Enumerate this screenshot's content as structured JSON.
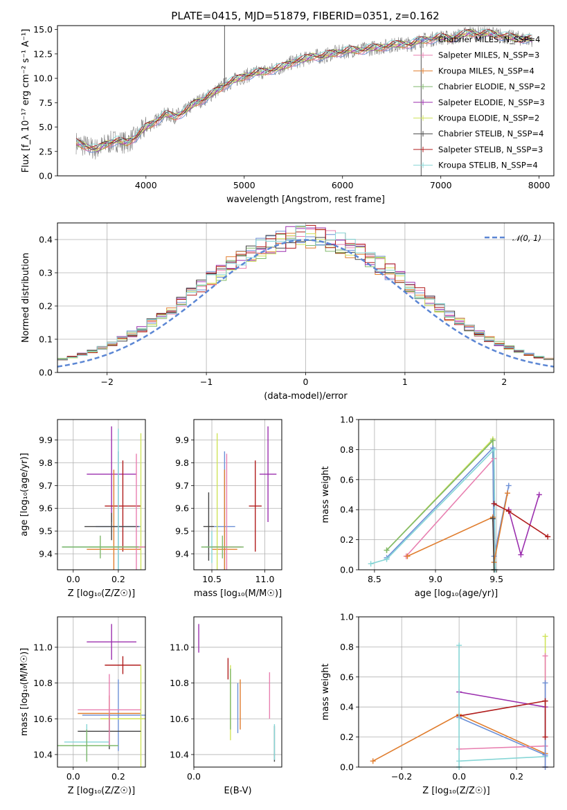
{
  "figure": {
    "title": "PLATE=0415, MJD=51879, FIBERID=0351, z=0.162"
  },
  "colors": {
    "chabrier_miles": "#6b8fd6",
    "salpeter_miles": "#e87fb0",
    "kroupa_miles": "#e07d2e",
    "chabrier_elodie": "#7fb86b",
    "salpeter_elodie": "#9b2fae",
    "kroupa_elodie": "#cfe35a",
    "chabrier_stelib": "#444444",
    "salpeter_stelib": "#b01c1c",
    "kroupa_stelib": "#86d6d6",
    "spectrum": "#808080",
    "normal_curve": "#5b86d4",
    "grid": "#b0b0b0"
  },
  "chart_data": [
    {
      "id": "spectrum",
      "type": "line",
      "xlabel": "wavelength [Angstrom, rest frame]",
      "ylabel": "Flux [f_λ 10⁻¹⁷ erg cm⁻² s⁻¹ A⁻¹]",
      "xlim": [
        3100,
        8150
      ],
      "ylim": [
        0,
        15.4
      ],
      "xticks": [
        "4000",
        "5000",
        "6000",
        "7000",
        "8000"
      ],
      "yticks": [
        "0.0",
        "2.5",
        "5.0",
        "7.5",
        "10.0",
        "12.5",
        "15.0"
      ],
      "grid": false,
      "legend_position": "upper-right",
      "continuum": [
        [
          3290,
          3.4
        ],
        [
          3400,
          3.0
        ],
        [
          3500,
          2.7
        ],
        [
          3600,
          3.3
        ],
        [
          3700,
          3.6
        ],
        [
          3800,
          3.4
        ],
        [
          3900,
          4.0
        ],
        [
          4000,
          5.0
        ],
        [
          4100,
          5.6
        ],
        [
          4200,
          6.3
        ],
        [
          4300,
          6.1
        ],
        [
          4400,
          6.6
        ],
        [
          4500,
          7.5
        ],
        [
          4600,
          7.9
        ],
        [
          4700,
          8.6
        ],
        [
          4800,
          9.3
        ],
        [
          4900,
          9.8
        ],
        [
          5000,
          10.2
        ],
        [
          5100,
          10.5
        ],
        [
          5200,
          10.7
        ],
        [
          5300,
          10.9
        ],
        [
          5400,
          11.2
        ],
        [
          5500,
          11.7
        ],
        [
          5600,
          11.9
        ],
        [
          5700,
          12.3
        ],
        [
          5800,
          12.2
        ],
        [
          5900,
          12.6
        ],
        [
          6000,
          12.7
        ],
        [
          6100,
          12.9
        ],
        [
          6200,
          12.9
        ],
        [
          6300,
          13.1
        ],
        [
          6400,
          13.2
        ],
        [
          6500,
          13.4
        ],
        [
          6600,
          13.5
        ],
        [
          6700,
          13.5
        ],
        [
          6800,
          13.9
        ],
        [
          6900,
          14.0
        ],
        [
          7000,
          14.2
        ],
        [
          7100,
          14.1
        ],
        [
          7200,
          14.4
        ],
        [
          7300,
          14.7
        ],
        [
          7400,
          14.5
        ],
        [
          7500,
          14.6
        ],
        [
          7600,
          14.4
        ],
        [
          7700,
          14.2
        ],
        [
          7800,
          14.1
        ],
        [
          7930,
          14.0
        ]
      ],
      "spikes": [
        [
          4800,
          15.4
        ],
        [
          6800,
          0.0
        ],
        [
          7380,
          14.3
        ]
      ],
      "legend": [
        "Chabrier MILES, N_SSP=4",
        "Salpeter MILES, N_SSP=3",
        "Kroupa MILES, N_SSP=4",
        "Chabrier ELODIE, N_SSP=2",
        "Salpeter ELODIE, N_SSP=3",
        "Kroupa ELODIE, N_SSP=2",
        "Chabrier STELIB, N_SSP=4",
        "Salpeter STELIB, N_SSP=3",
        "Kroupa STELIB, N_SSP=4"
      ]
    },
    {
      "id": "residuals",
      "type": "line",
      "xlabel": "(data-model)/error",
      "ylabel": "Normed distribution",
      "xlim": [
        -2.5,
        2.5
      ],
      "ylim": [
        0,
        0.45
      ],
      "xticks": [
        "−2",
        "−1",
        "0",
        "1",
        "2"
      ],
      "yticks": [
        "0.0",
        "0.1",
        "0.2",
        "0.3",
        "0.4"
      ],
      "grid": true,
      "legend": [
        "𝒩(0, 1)"
      ],
      "legend_position": "upper-right",
      "normal_curve": {
        "mu": 0,
        "sigma": 1
      }
    },
    {
      "id": "age-z",
      "type": "scatter",
      "xlabel": "Z [log₁₀(Z/Z☉)]",
      "ylabel": "age  [log₁₀(age/yr)]",
      "xlim": [
        -0.07,
        0.32
      ],
      "ylim": [
        9.33,
        9.99
      ],
      "xticks": [
        "0.0",
        "0.2"
      ],
      "yticks": [
        "9.4",
        "9.5",
        "9.6",
        "9.7",
        "9.8",
        "9.9"
      ],
      "grid": true,
      "points": [
        {
          "x": 0.17,
          "y": 9.75,
          "xerr": 0.11,
          "yerr": 0.21,
          "color": "salpeter_elodie"
        },
        {
          "x": 0.22,
          "y": 9.61,
          "xerr": 0.08,
          "yerr": 0.2,
          "color": "salpeter_stelib"
        },
        {
          "x": 0.2,
          "y": 9.52,
          "xerr": 0.1,
          "yerr": 0.33,
          "color": "chabrier_miles"
        },
        {
          "x": 0.18,
          "y": 9.42,
          "xerr": 0.12,
          "yerr": 0.35,
          "color": "kroupa_miles"
        },
        {
          "x": 0.3,
          "y": 9.43,
          "xerr": 0.23,
          "yerr": 0.5,
          "color": "kroupa_elodie"
        },
        {
          "x": 0.17,
          "y": 9.52,
          "xerr": 0.12,
          "yerr": 0.06,
          "color": "chabrier_stelib"
        },
        {
          "x": 0.2,
          "y": 9.43,
          "xerr": 0.25,
          "yerr": 0.52,
          "color": "kroupa_stelib"
        },
        {
          "x": 0.28,
          "y": 9.43,
          "xerr": 0.1,
          "yerr": 0.41,
          "color": "salpeter_miles"
        },
        {
          "x": 0.12,
          "y": 9.43,
          "xerr": 0.17,
          "yerr": 0.05,
          "color": "chabrier_elodie"
        }
      ]
    },
    {
      "id": "age-mass",
      "type": "scatter",
      "xlabel": "mass [log₁₀(M/M☉)]",
      "ylabel": "",
      "xlim": [
        10.33,
        11.16
      ],
      "ylim": [
        9.33,
        9.99
      ],
      "xticks": [
        "10.5",
        "11.0"
      ],
      "yticks": [
        "9.4",
        "9.5",
        "9.6",
        "9.7",
        "9.8",
        "9.9"
      ],
      "grid": true,
      "points": [
        {
          "x": 11.03,
          "y": 9.75,
          "xerr": 0.08,
          "yerr": 0.21,
          "color": "salpeter_elodie"
        },
        {
          "x": 10.91,
          "y": 9.61,
          "xerr": 0.06,
          "yerr": 0.2,
          "color": "salpeter_stelib"
        },
        {
          "x": 10.62,
          "y": 9.52,
          "xerr": 0.1,
          "yerr": 0.33,
          "color": "chabrier_miles"
        },
        {
          "x": 10.62,
          "y": 9.42,
          "xerr": 0.12,
          "yerr": 0.35,
          "color": "kroupa_miles"
        },
        {
          "x": 10.55,
          "y": 9.43,
          "xerr": 0.06,
          "yerr": 0.5,
          "color": "kroupa_elodie"
        },
        {
          "x": 10.47,
          "y": 9.52,
          "xerr": 0.05,
          "yerr": 0.15,
          "color": "chabrier_stelib"
        },
        {
          "x": 10.5,
          "y": 9.43,
          "xerr": 0.06,
          "yerr": 0.07,
          "color": "kroupa_stelib"
        },
        {
          "x": 10.64,
          "y": 9.43,
          "xerr": 0.14,
          "yerr": 0.41,
          "color": "salpeter_miles"
        },
        {
          "x": 10.6,
          "y": 9.43,
          "xerr": 0.2,
          "yerr": 0.05,
          "color": "chabrier_elodie"
        }
      ]
    },
    {
      "id": "weight-age",
      "type": "line",
      "xlabel": "age  [log₁₀(age/yr)]",
      "ylabel": "mass weight",
      "xlim": [
        8.37,
        9.97
      ],
      "ylim": [
        0,
        1
      ],
      "xticks": [
        "8.5",
        "9.0",
        "9.5"
      ],
      "yticks": [
        "0.0",
        "0.2",
        "0.4",
        "0.6",
        "0.8",
        "1.0"
      ],
      "grid": true,
      "series": [
        {
          "color": "kroupa_elodie",
          "x": [
            8.6,
            9.47,
            9.48
          ],
          "y": [
            0.13,
            0.87,
            0.0
          ]
        },
        {
          "color": "chabrier_elodie",
          "x": [
            8.6,
            9.47,
            9.48
          ],
          "y": [
            0.13,
            0.86,
            0.0
          ]
        },
        {
          "color": "chabrier_miles",
          "x": [
            8.6,
            9.47,
            9.48,
            9.6
          ],
          "y": [
            0.08,
            0.81,
            0.09,
            0.56
          ]
        },
        {
          "color": "salpeter_miles",
          "x": [
            8.76,
            9.48,
            9.49
          ],
          "y": [
            0.09,
            0.74,
            0.0
          ]
        },
        {
          "color": "kroupa_stelib",
          "x": [
            8.47,
            8.6,
            9.48,
            9.49
          ],
          "y": [
            0.04,
            0.07,
            0.8,
            0.0
          ]
        },
        {
          "color": "kroupa_miles",
          "x": [
            8.77,
            9.47,
            9.48,
            9.59
          ],
          "y": [
            0.09,
            0.35,
            0.05,
            0.51
          ]
        },
        {
          "color": "salpeter_elodie",
          "x": [
            9.6,
            9.7,
            9.85
          ],
          "y": [
            0.4,
            0.1,
            0.5
          ]
        },
        {
          "color": "salpeter_stelib",
          "x": [
            9.48,
            9.6,
            9.92
          ],
          "y": [
            0.44,
            0.39,
            0.22
          ]
        },
        {
          "color": "chabrier_stelib",
          "x": [
            9.47,
            9.48
          ],
          "y": [
            0.34,
            0.0
          ]
        }
      ]
    },
    {
      "id": "mass-z",
      "type": "scatter",
      "xlabel": "Z [log₁₀(Z/Z☉)]",
      "ylabel": "mass [log₁₀(M/M☉)]",
      "xlim": [
        -0.07,
        0.32
      ],
      "ylim": [
        10.33,
        11.17
      ],
      "xticks": [
        "0.0",
        "0.2"
      ],
      "yticks": [
        "10.4",
        "10.6",
        "10.8",
        "11.0"
      ],
      "grid": true,
      "points": [
        {
          "x": 0.17,
          "y": 11.03,
          "xerr": 0.11,
          "yerr": 0.1,
          "color": "salpeter_elodie"
        },
        {
          "x": 0.22,
          "y": 10.9,
          "xerr": 0.08,
          "yerr": 0.05,
          "color": "salpeter_stelib"
        },
        {
          "x": 0.2,
          "y": 10.62,
          "xerr": 0.16,
          "yerr": 0.2,
          "color": "chabrier_miles"
        },
        {
          "x": 0.16,
          "y": 10.63,
          "xerr": 0.14,
          "yerr": 0.1,
          "color": "kroupa_miles"
        },
        {
          "x": 0.3,
          "y": 10.6,
          "xerr": 0.18,
          "yerr": 0.3,
          "color": "kroupa_elodie"
        },
        {
          "x": 0.16,
          "y": 10.53,
          "xerr": 0.14,
          "yerr": 0.1,
          "color": "chabrier_stelib"
        },
        {
          "x": 0.06,
          "y": 10.47,
          "xerr": 0.1,
          "yerr": 0.1,
          "color": "kroupa_stelib"
        },
        {
          "x": 0.16,
          "y": 10.65,
          "xerr": 0.14,
          "yerr": 0.2,
          "color": "salpeter_miles"
        },
        {
          "x": 0.06,
          "y": 10.45,
          "xerr": 0.14,
          "yerr": 0.09,
          "color": "chabrier_elodie"
        }
      ]
    },
    {
      "id": "mass-ebv",
      "type": "scatter",
      "xlabel": "E(B-V)",
      "ylabel": "",
      "xlim": [
        0.0,
        0.36
      ],
      "ylim": [
        10.33,
        11.17
      ],
      "xticks": [
        "0.0"
      ],
      "yticks": [
        "10.4",
        "10.6",
        "10.8",
        "11.0"
      ],
      "grid": true,
      "points": [
        {
          "x": 0.02,
          "y": 11.05,
          "xerr": 0.0,
          "yerr": 0.08,
          "color": "salpeter_elodie"
        },
        {
          "x": 0.14,
          "y": 10.88,
          "xerr": 0.0,
          "yerr": 0.06,
          "color": "salpeter_stelib"
        },
        {
          "x": 0.18,
          "y": 10.66,
          "xerr": 0.0,
          "yerr": 0.14,
          "color": "chabrier_miles"
        },
        {
          "x": 0.19,
          "y": 10.68,
          "xerr": 0.0,
          "yerr": 0.14,
          "color": "kroupa_miles"
        },
        {
          "x": 0.15,
          "y": 10.69,
          "xerr": 0.0,
          "yerr": 0.21,
          "color": "kroupa_elodie"
        },
        {
          "x": 0.33,
          "y": 10.46,
          "xerr": 0.0,
          "yerr": 0.1,
          "color": "chabrier_stelib"
        },
        {
          "x": 0.33,
          "y": 10.47,
          "xerr": 0.0,
          "yerr": 0.1,
          "color": "kroupa_stelib"
        },
        {
          "x": 0.31,
          "y": 10.73,
          "xerr": 0.0,
          "yerr": 0.13,
          "color": "salpeter_miles"
        },
        {
          "x": 0.15,
          "y": 10.71,
          "xerr": 0.0,
          "yerr": 0.17,
          "color": "chabrier_elodie"
        }
      ]
    },
    {
      "id": "weight-z",
      "type": "line",
      "xlabel": "Z [log₁₀(Z/Z☉)]",
      "ylabel": "mass weight",
      "xlim": [
        -0.35,
        0.33
      ],
      "ylim": [
        0,
        1
      ],
      "xticks": [
        "−0.2",
        "0.0",
        "0.2"
      ],
      "yticks": [
        "0.0",
        "0.2",
        "0.4",
        "0.6",
        "0.8",
        "1.0"
      ],
      "grid": true,
      "series": [
        {
          "color": "kroupa_miles",
          "x": [
            -0.3,
            0.0,
            0.3
          ],
          "y": [
            0.04,
            0.35,
            0.09
          ]
        },
        {
          "color": "salpeter_elodie",
          "x": [
            0.0,
            0.3
          ],
          "y": [
            0.5,
            0.4
          ]
        },
        {
          "color": "salpeter_stelib",
          "x": [
            0.0,
            0.3
          ],
          "y": [
            0.34,
            0.44
          ]
        },
        {
          "color": "chabrier_miles",
          "x": [
            0.0,
            0.3
          ],
          "y": [
            0.33,
            0.08
          ]
        },
        {
          "color": "salpeter_miles",
          "x": [
            0.0,
            0.3
          ],
          "y": [
            0.12,
            0.14
          ]
        },
        {
          "color": "kroupa_stelib",
          "x": [
            0.0,
            0.3
          ],
          "y": [
            0.04,
            0.07
          ]
        },
        {
          "color": "kroupa_elodie",
          "x": [
            0.3,
            0.3
          ],
          "y": [
            0.0,
            0.87
          ]
        },
        {
          "color": "kroupa_stelib",
          "x": [
            0.0,
            0.0
          ],
          "y": [
            0.0,
            0.81
          ]
        },
        {
          "color": "salpeter_miles",
          "x": [
            0.3,
            0.3
          ],
          "y": [
            0.0,
            0.74
          ]
        },
        {
          "color": "chabrier_miles",
          "x": [
            0.3,
            0.3
          ],
          "y": [
            0.0,
            0.56
          ]
        },
        {
          "color": "salpeter_stelib",
          "x": [
            0.3,
            0.3
          ],
          "y": [
            0.2,
            0.44
          ]
        }
      ]
    }
  ]
}
